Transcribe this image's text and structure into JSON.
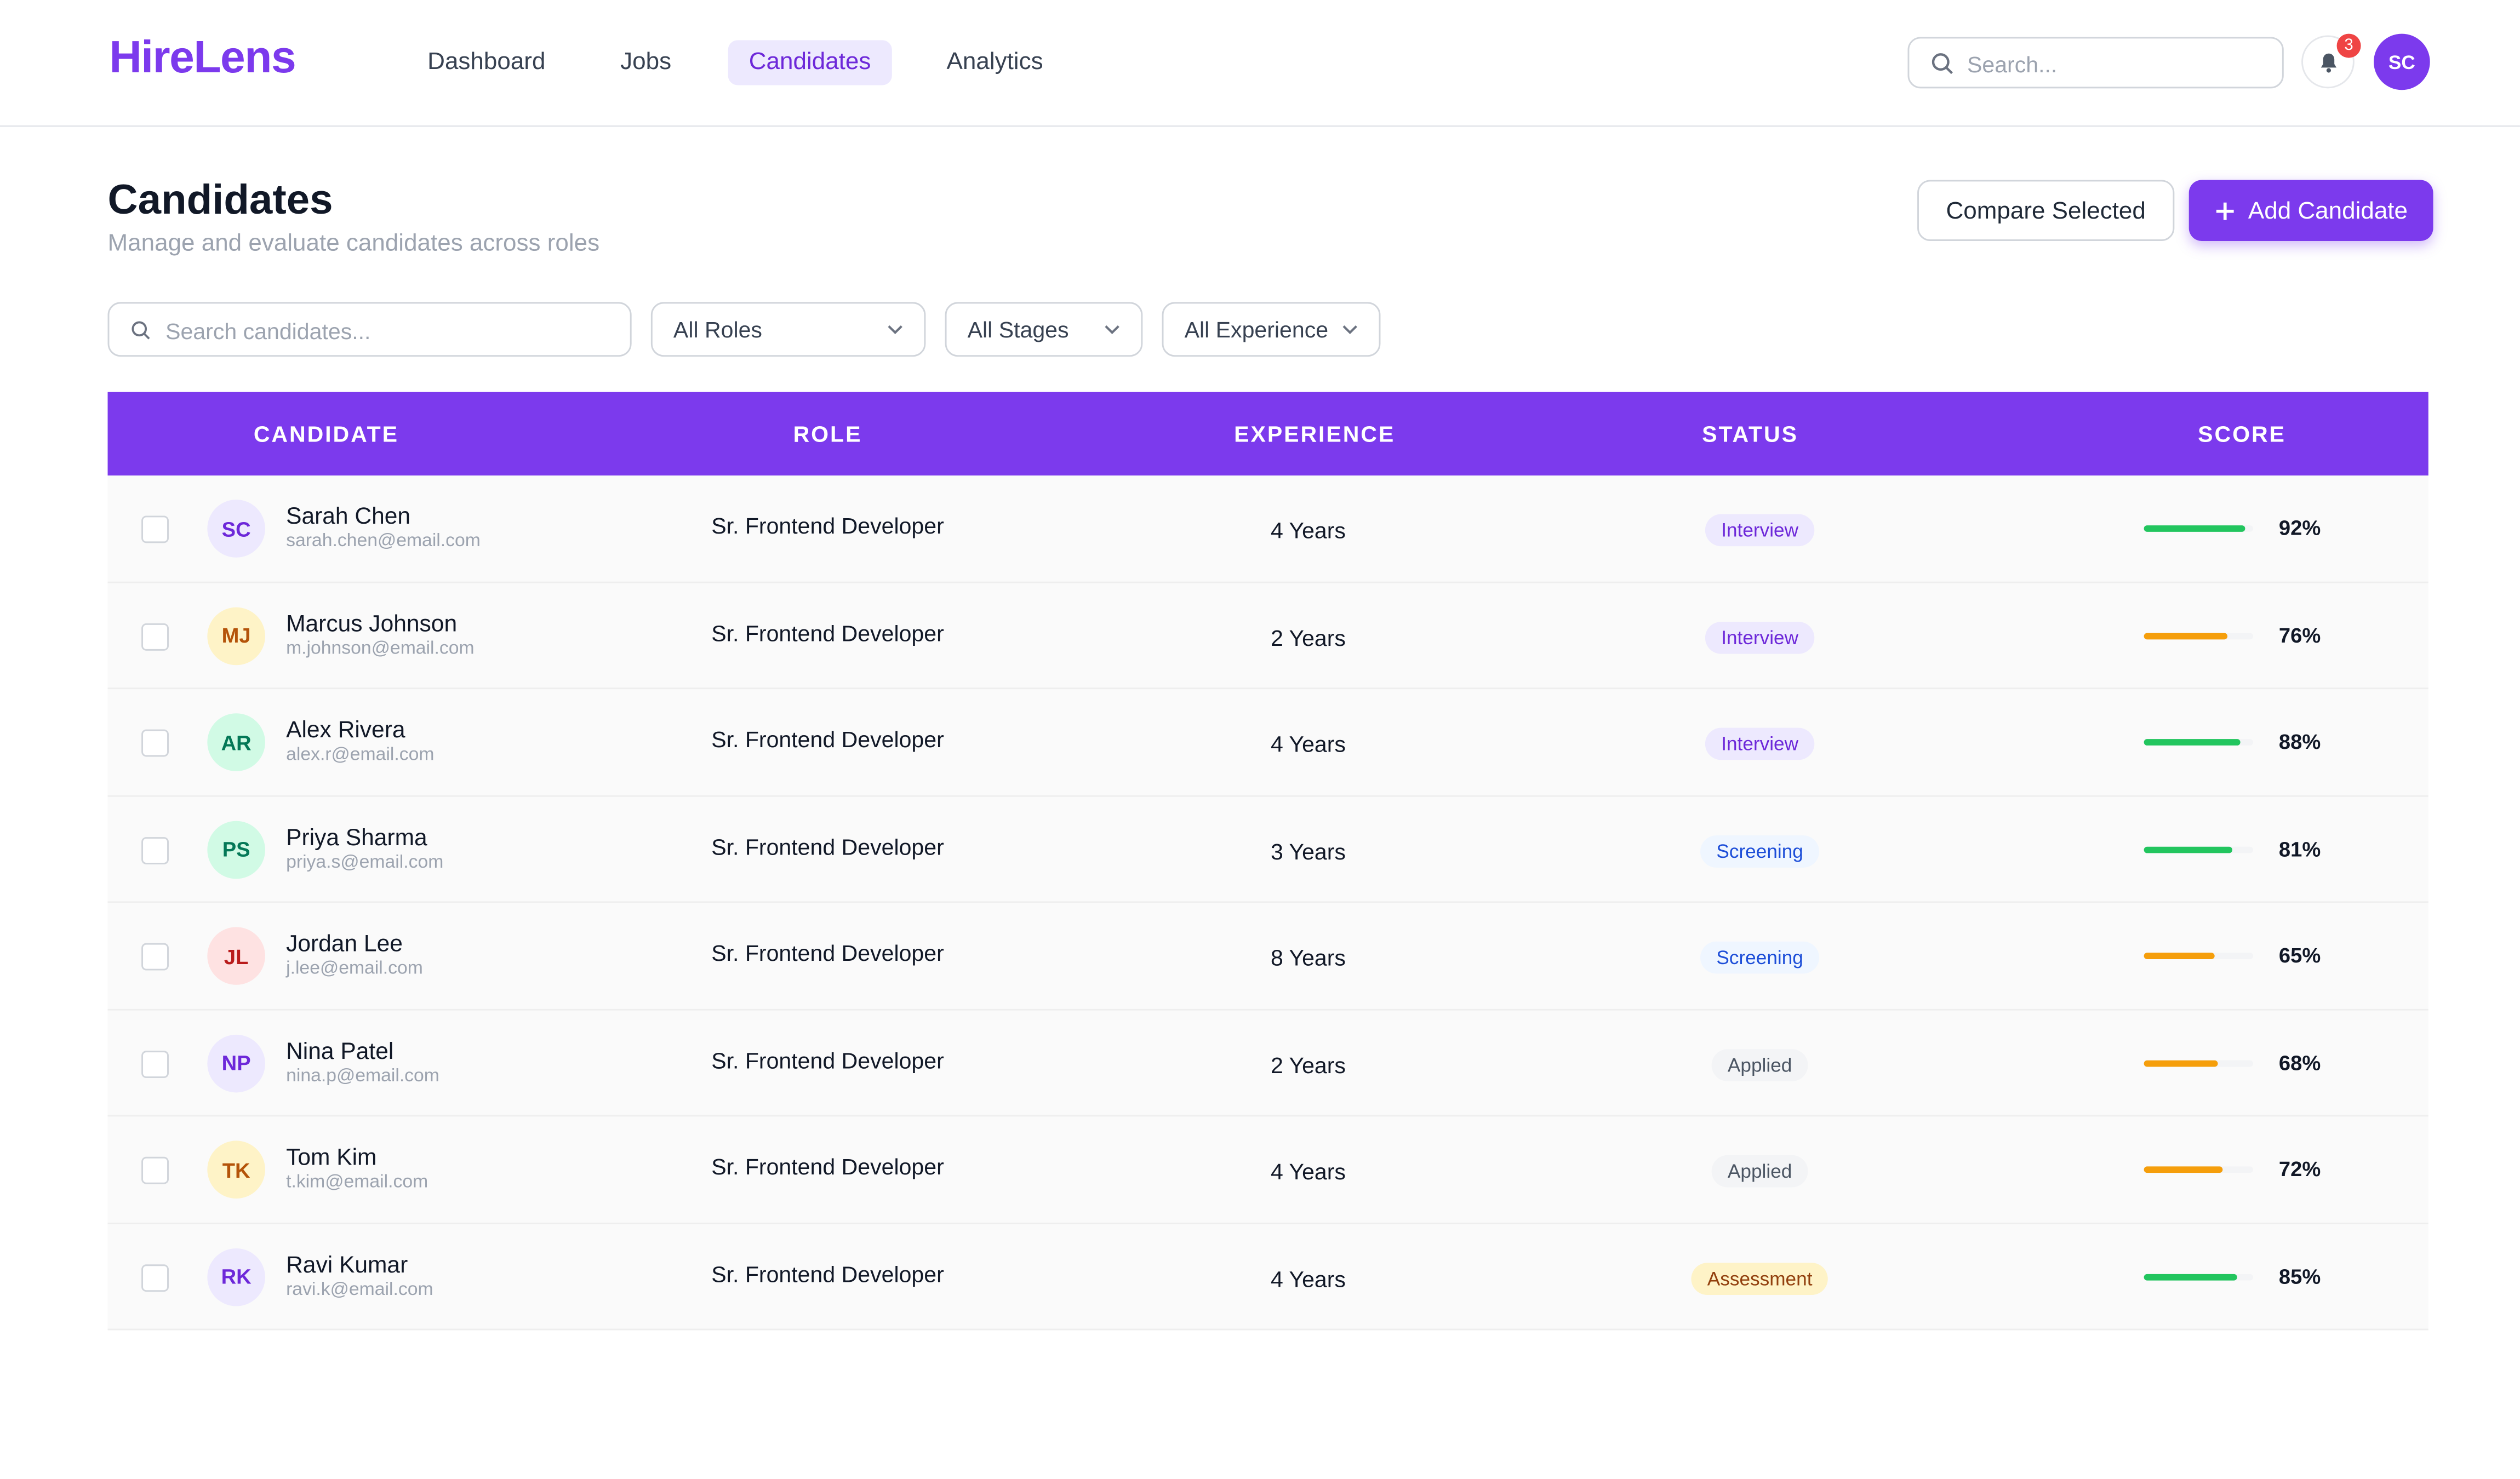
{
  "header": {
    "logo": "HireLens",
    "nav": [
      "Dashboard",
      "Jobs",
      "Candidates",
      "Analytics"
    ],
    "active_nav": 2,
    "search_placeholder": "Search...",
    "notification_count": "3",
    "user_initials": "SC"
  },
  "page": {
    "title": "Candidates",
    "subtitle": "Manage and evaluate candidates across roles",
    "buttons": [
      "Compare Selected",
      "Add Candidate"
    ]
  },
  "filters": {
    "search_placeholder": "Search candidates...",
    "selects": [
      "All Roles",
      "All Stages",
      "All Experience"
    ]
  },
  "table": {
    "columns": [
      "CANDIDATE",
      "ROLE",
      "EXPERIENCE",
      "STATUS",
      "SCORE"
    ],
    "rows": [
      {
        "initials": "SC",
        "avatar_bg": "#ede9fe",
        "avatar_fg": "#6d28d9",
        "name": "Sarah Chen",
        "email": "sarah.chen@email.com",
        "role": "Sr. Frontend Developer",
        "experience": "4 Years",
        "status": "Interview",
        "status_bg": "#ede9fe",
        "status_fg": "#6d28d9",
        "score": 92,
        "score_label": "92%",
        "score_color": "#22c55e"
      },
      {
        "initials": "MJ",
        "avatar_bg": "#fef3c7",
        "avatar_fg": "#b45309",
        "name": "Marcus Johnson",
        "email": "m.johnson@email.com",
        "role": "Sr. Frontend Developer",
        "experience": "2 Years",
        "status": "Interview",
        "status_bg": "#ede9fe",
        "status_fg": "#6d28d9",
        "score": 76,
        "score_label": "76%",
        "score_color": "#f59e0b"
      },
      {
        "initials": "AR",
        "avatar_bg": "#d1fae5",
        "avatar_fg": "#047857",
        "name": "Alex Rivera",
        "email": "alex.r@email.com",
        "role": "Sr. Frontend Developer",
        "experience": "4 Years",
        "status": "Interview",
        "status_bg": "#ede9fe",
        "status_fg": "#6d28d9",
        "score": 88,
        "score_label": "88%",
        "score_color": "#22c55e"
      },
      {
        "initials": "PS",
        "avatar_bg": "#d1fae5",
        "avatar_fg": "#047857",
        "name": "Priya Sharma",
        "email": "priya.s@email.com",
        "role": "Sr. Frontend Developer",
        "experience": "3 Years",
        "status": "Screening",
        "status_bg": "#eff6ff",
        "status_fg": "#1d4ed8",
        "score": 81,
        "score_label": "81%",
        "score_color": "#22c55e"
      },
      {
        "initials": "JL",
        "avatar_bg": "#fee2e2",
        "avatar_fg": "#b91c1c",
        "name": "Jordan Lee",
        "email": "j.lee@email.com",
        "role": "Sr. Frontend Developer",
        "experience": "8 Years",
        "status": "Screening",
        "status_bg": "#eff6ff",
        "status_fg": "#1d4ed8",
        "score": 65,
        "score_label": "65%",
        "score_color": "#f59e0b"
      },
      {
        "initials": "NP",
        "avatar_bg": "#ede9fe",
        "avatar_fg": "#6d28d9",
        "name": "Nina Patel",
        "email": "nina.p@email.com",
        "role": "Sr. Frontend Developer",
        "experience": "2 Years",
        "status": "Applied",
        "status_bg": "#f3f4f6",
        "status_fg": "#4b5563",
        "score": 68,
        "score_label": "68%",
        "score_color": "#f59e0b"
      },
      {
        "initials": "TK",
        "avatar_bg": "#fef3c7",
        "avatar_fg": "#b45309",
        "name": "Tom Kim",
        "email": "t.kim@email.com",
        "role": "Sr. Frontend Developer",
        "experience": "4 Years",
        "status": "Applied",
        "status_bg": "#f3f4f6",
        "status_fg": "#4b5563",
        "score": 72,
        "score_label": "72%",
        "score_color": "#f59e0b"
      },
      {
        "initials": "RK",
        "avatar_bg": "#ede9fe",
        "avatar_fg": "#6d28d9",
        "name": "Ravi Kumar",
        "email": "ravi.k@email.com",
        "role": "Sr. Frontend Developer",
        "experience": "4 Years",
        "status": "Assessment",
        "status_bg": "#fef3c7",
        "status_fg": "#92400e",
        "score": 85,
        "score_label": "85%",
        "score_color": "#22c55e"
      }
    ]
  }
}
